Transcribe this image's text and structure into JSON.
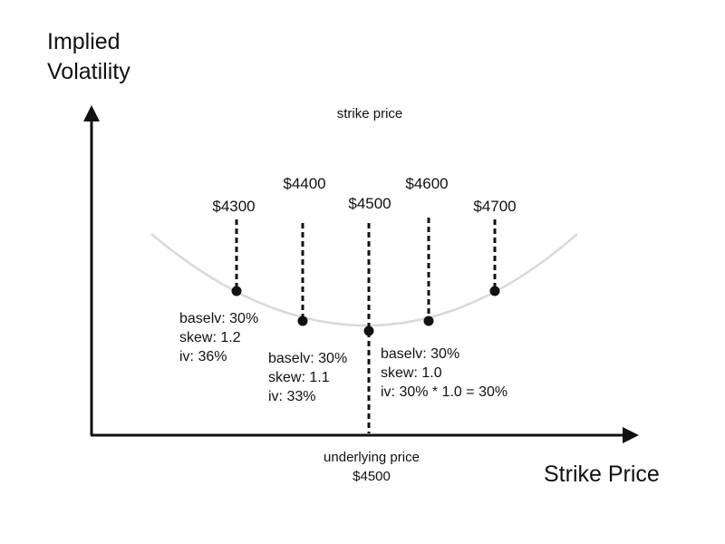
{
  "y_axis_label": [
    "Implied",
    "Volatility"
  ],
  "x_axis_label": "Strike Price",
  "strike_price_caption": "strike price",
  "underlying": {
    "caption": "underlying price",
    "value": "$4500"
  },
  "strikes": [
    {
      "label": "$4300"
    },
    {
      "label": "$4400"
    },
    {
      "label": "$4500"
    },
    {
      "label": "$4600"
    },
    {
      "label": "$4700"
    }
  ],
  "annotations": [
    {
      "lines": [
        "baselv: 30%",
        "skew: 1.2",
        "iv: 36%"
      ]
    },
    {
      "lines": [
        "baselv: 30%",
        "skew: 1.1",
        "iv: 33%"
      ]
    },
    {
      "lines": [
        "baselv: 30%",
        "skew: 1.0",
        "iv: 30% * 1.0 = 30%"
      ]
    }
  ],
  "colors": {
    "axis": "#111111",
    "smile_curve": "#d9d9d9",
    "points": "#111111"
  }
}
